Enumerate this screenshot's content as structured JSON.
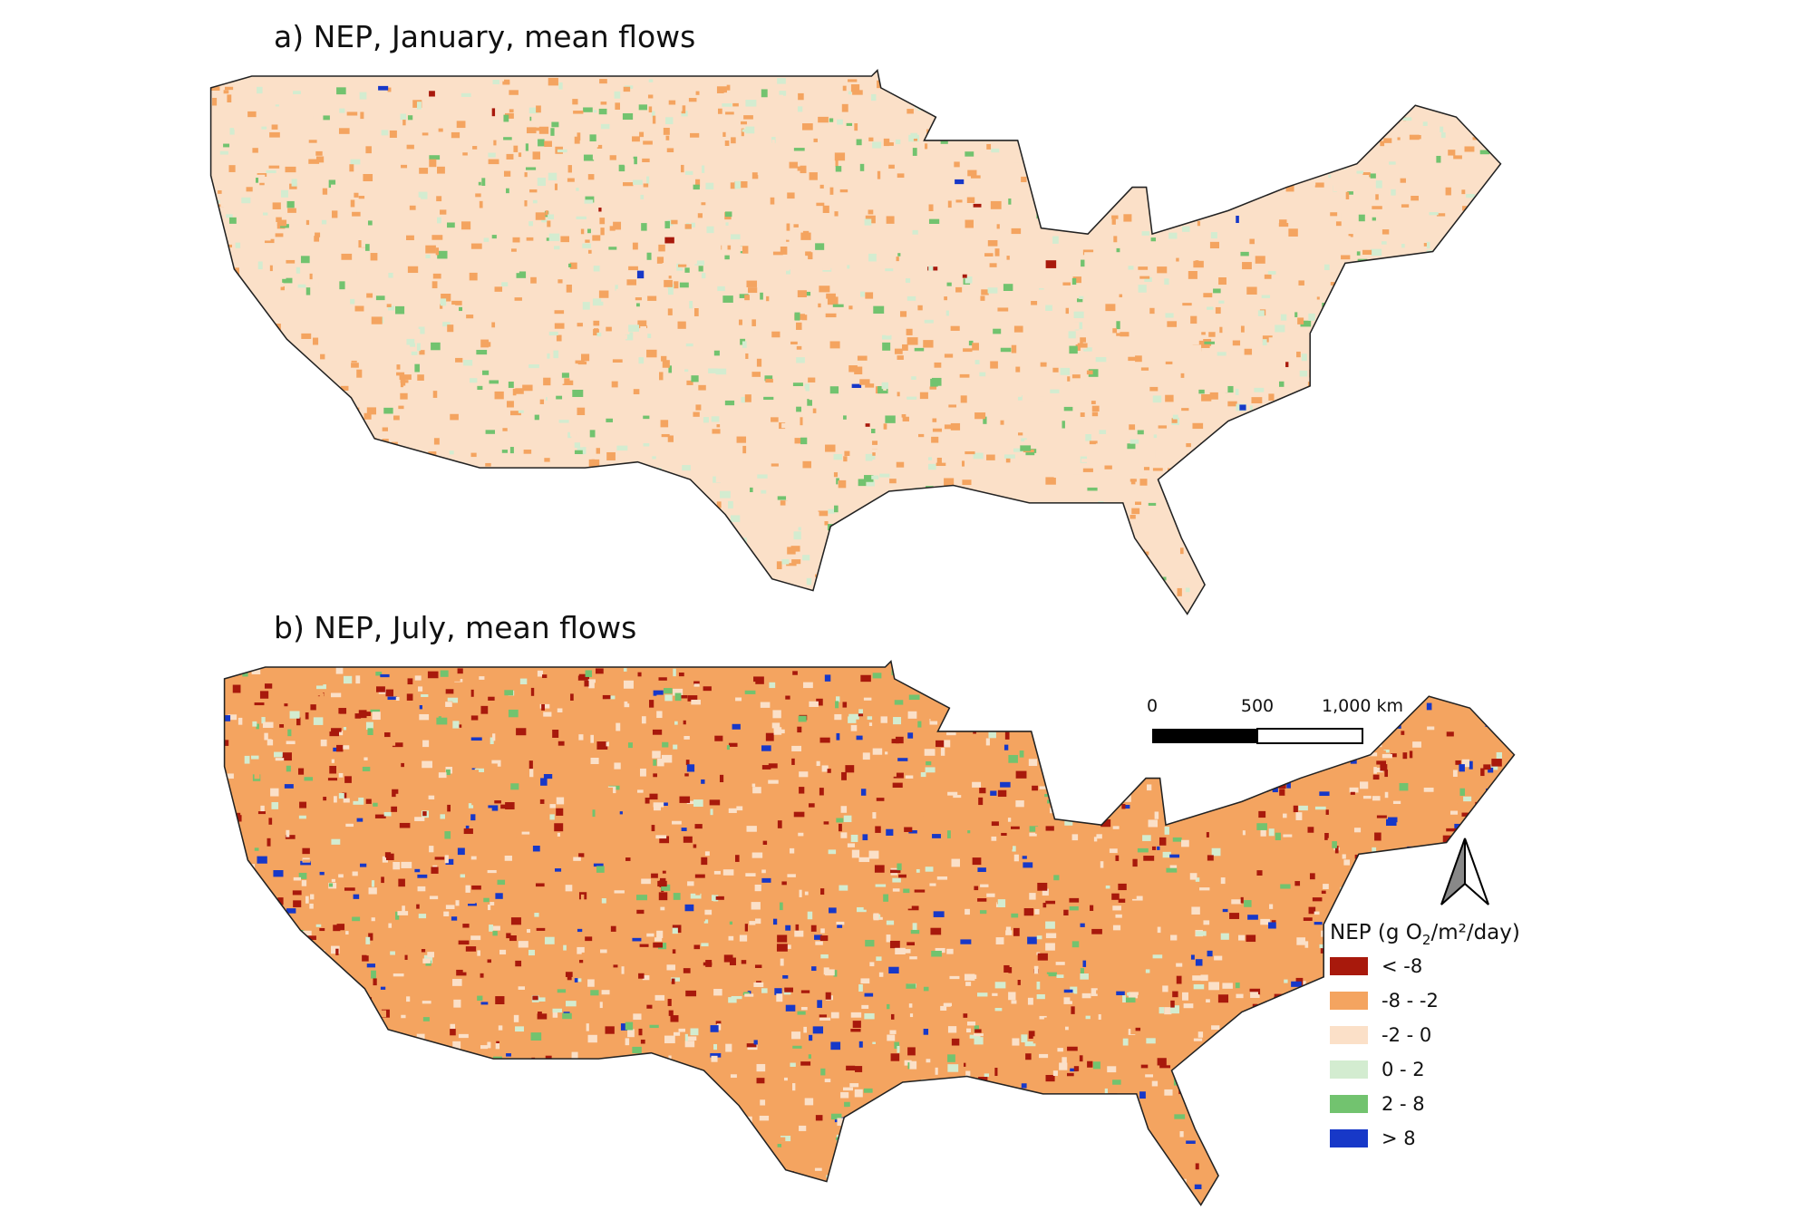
{
  "panels": [
    {
      "title": "a) NEP, January, mean flows"
    },
    {
      "title": "b) NEP, July, mean flows"
    }
  ],
  "legend": {
    "title_parts": [
      "NEP (g O",
      "2",
      "/m²/day)"
    ],
    "items": [
      {
        "label": "< -8",
        "color": "#a8190c"
      },
      {
        "label": "-8 - -2",
        "color": "#f4a460"
      },
      {
        "label": "-2 - 0",
        "color": "#fbe0c8"
      },
      {
        "label": "0 - 2",
        "color": "#d3ecd0"
      },
      {
        "label": "2 - 8",
        "color": "#72c36f"
      },
      {
        "label": "> 8",
        "color": "#1738c8"
      }
    ]
  },
  "scale_bar": {
    "labels": [
      "0",
      "500",
      "1,000 km"
    ]
  }
}
